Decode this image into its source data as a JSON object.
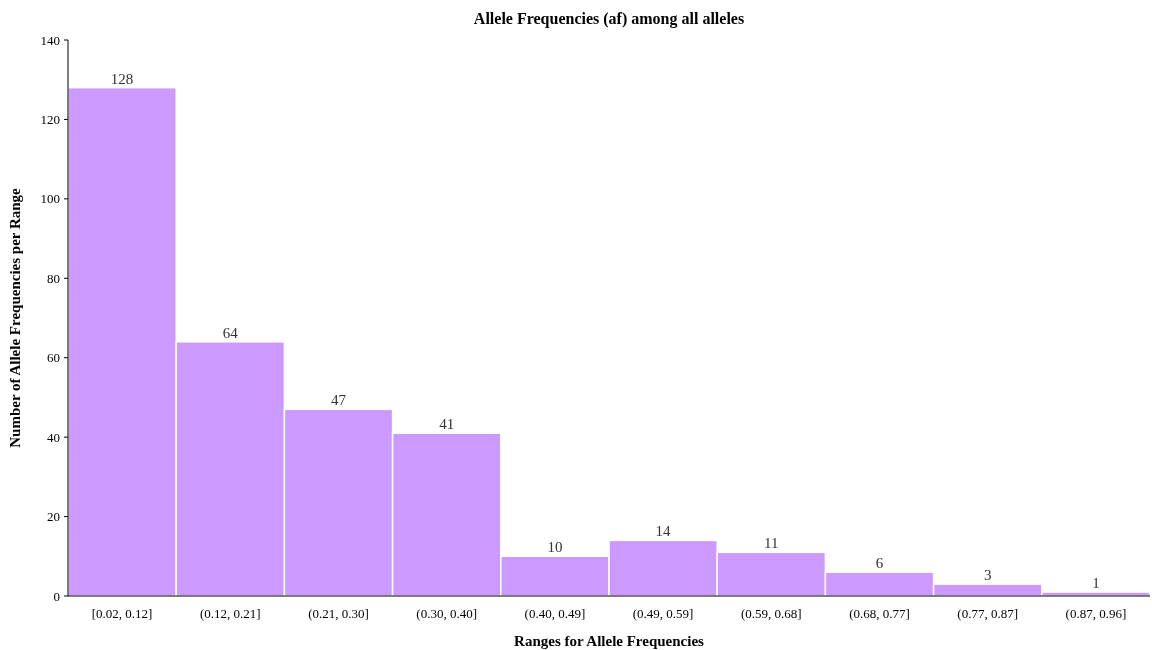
{
  "chart_data": {
    "type": "bar",
    "title": "Allele Frequencies (af) among all alleles",
    "xlabel": "Ranges for Allele Frequencies",
    "ylabel": "Number of Allele Frequencies per Range",
    "categories": [
      "[0.02, 0.12]",
      "(0.12, 0.21]",
      "(0.21, 0.30]",
      "(0.30, 0.40]",
      "(0.40, 0.49]",
      "(0.49, 0.59]",
      "(0.59, 0.68]",
      "(0.68, 0.77]",
      "(0.77, 0.87]",
      "(0.87, 0.96]"
    ],
    "values": [
      128,
      64,
      47,
      41,
      10,
      14,
      11,
      6,
      3,
      1
    ],
    "color": "#cc99ff",
    "ylim": [
      0,
      140
    ],
    "yticks": [
      0,
      20,
      40,
      60,
      80,
      100,
      120,
      140
    ],
    "data_labels": true
  }
}
